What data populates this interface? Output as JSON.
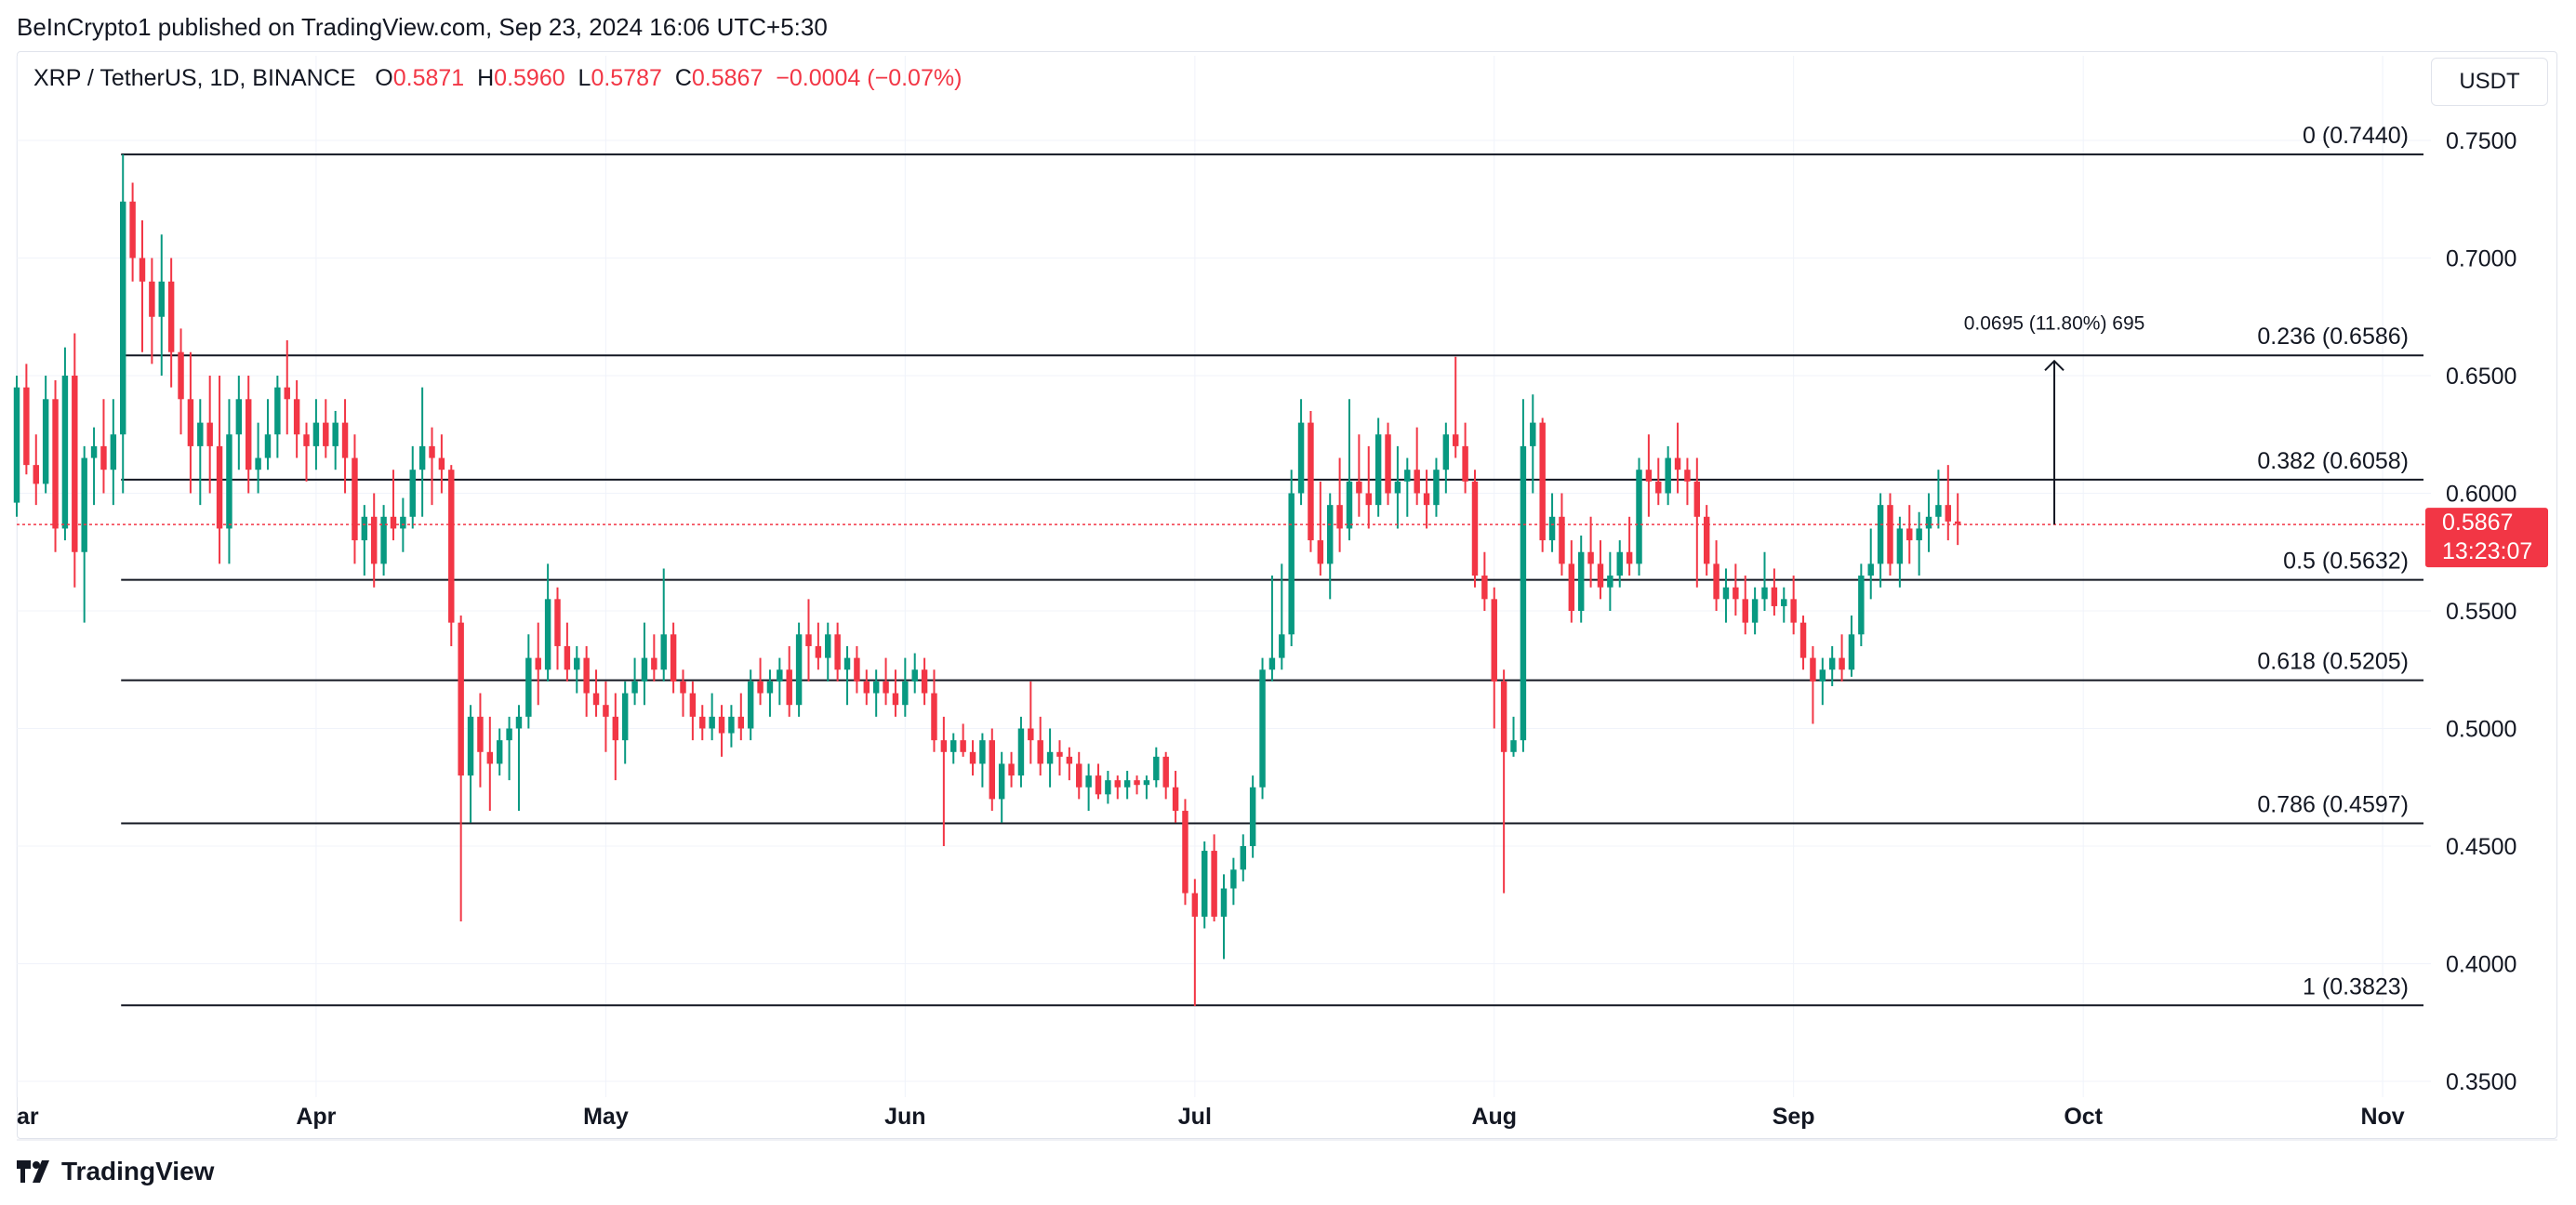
{
  "header": {
    "published_by": "BeInCrypto1 published on TradingView.com, Sep 23, 2024 16:06 UTC+5:30"
  },
  "legend": {
    "symbol": "XRP / TetherUS, 1D, BINANCE",
    "o_label": "O",
    "o_value": "0.5871",
    "h_label": "H",
    "h_value": "0.5960",
    "l_label": "L",
    "l_value": "0.5787",
    "c_label": "C",
    "c_value": "0.5867",
    "change": "−0.0004 (−0.07%)"
  },
  "currency_button": "USDT",
  "footer": {
    "brand": "TradingView"
  },
  "price_tag": {
    "price": "0.5867",
    "countdown": "13:23:07"
  },
  "measure_label": "0.0695 (11.80%) 695",
  "colors": {
    "up": "#089981",
    "down": "#f23645",
    "axis_text": "#131722",
    "grid": "#f0f3fa"
  },
  "icons": {
    "brand": "tradingview-logo-icon"
  },
  "chart_data": {
    "type": "candlestick",
    "symbol": "XRP / TetherUS",
    "interval": "1D",
    "exchange": "BINANCE",
    "ylim": [
      0.33,
      0.78
    ],
    "y_ticks": [
      {
        "value": 0.75,
        "label": "0.7500"
      },
      {
        "value": 0.7,
        "label": "0.7000"
      },
      {
        "value": 0.65,
        "label": "0.6500"
      },
      {
        "value": 0.6,
        "label": "0.6000"
      },
      {
        "value": 0.55,
        "label": "0.5500"
      },
      {
        "value": 0.5,
        "label": "0.5000"
      },
      {
        "value": 0.45,
        "label": "0.4500"
      },
      {
        "value": 0.4,
        "label": "0.4000"
      },
      {
        "value": 0.35,
        "label": "0.3500"
      }
    ],
    "x_range": [
      "2024-03-01",
      "2024-11-06"
    ],
    "x_ticks": [
      {
        "date": "2024-03-01",
        "label": "ar"
      },
      {
        "date": "2024-04-01",
        "label": "Apr"
      },
      {
        "date": "2024-05-01",
        "label": "May"
      },
      {
        "date": "2024-06-01",
        "label": "Jun"
      },
      {
        "date": "2024-07-01",
        "label": "Jul"
      },
      {
        "date": "2024-08-01",
        "label": "Aug"
      },
      {
        "date": "2024-09-01",
        "label": "Sep"
      },
      {
        "date": "2024-10-01",
        "label": "Oct"
      },
      {
        "date": "2024-11-01",
        "label": "Nov"
      }
    ],
    "first_candle_date": "2024-03-01",
    "candles": [
      [
        0.596,
        0.65,
        0.59,
        0.645
      ],
      [
        0.645,
        0.655,
        0.608,
        0.612
      ],
      [
        0.612,
        0.625,
        0.595,
        0.604
      ],
      [
        0.604,
        0.65,
        0.6,
        0.64
      ],
      [
        0.64,
        0.648,
        0.575,
        0.585
      ],
      [
        0.585,
        0.662,
        0.58,
        0.65
      ],
      [
        0.65,
        0.668,
        0.56,
        0.575
      ],
      [
        0.575,
        0.62,
        0.545,
        0.615
      ],
      [
        0.615,
        0.628,
        0.595,
        0.62
      ],
      [
        0.62,
        0.64,
        0.6,
        0.61
      ],
      [
        0.61,
        0.64,
        0.595,
        0.625
      ],
      [
        0.625,
        0.744,
        0.6,
        0.724
      ],
      [
        0.724,
        0.732,
        0.69,
        0.7
      ],
      [
        0.7,
        0.716,
        0.66,
        0.69
      ],
      [
        0.69,
        0.7,
        0.655,
        0.675
      ],
      [
        0.675,
        0.71,
        0.65,
        0.69
      ],
      [
        0.69,
        0.7,
        0.645,
        0.66
      ],
      [
        0.66,
        0.67,
        0.625,
        0.64
      ],
      [
        0.64,
        0.66,
        0.6,
        0.62
      ],
      [
        0.62,
        0.64,
        0.595,
        0.63
      ],
      [
        0.63,
        0.65,
        0.6,
        0.62
      ],
      [
        0.62,
        0.65,
        0.57,
        0.585
      ],
      [
        0.585,
        0.64,
        0.57,
        0.625
      ],
      [
        0.625,
        0.65,
        0.61,
        0.64
      ],
      [
        0.64,
        0.65,
        0.6,
        0.61
      ],
      [
        0.61,
        0.63,
        0.6,
        0.615
      ],
      [
        0.615,
        0.64,
        0.61,
        0.625
      ],
      [
        0.625,
        0.65,
        0.615,
        0.645
      ],
      [
        0.645,
        0.665,
        0.625,
        0.64
      ],
      [
        0.64,
        0.648,
        0.615,
        0.625
      ],
      [
        0.625,
        0.63,
        0.605,
        0.62
      ],
      [
        0.62,
        0.64,
        0.61,
        0.63
      ],
      [
        0.63,
        0.64,
        0.615,
        0.62
      ],
      [
        0.62,
        0.635,
        0.61,
        0.63
      ],
      [
        0.63,
        0.64,
        0.6,
        0.615
      ],
      [
        0.615,
        0.625,
        0.57,
        0.58
      ],
      [
        0.58,
        0.595,
        0.565,
        0.59
      ],
      [
        0.59,
        0.6,
        0.56,
        0.57
      ],
      [
        0.57,
        0.595,
        0.565,
        0.59
      ],
      [
        0.59,
        0.61,
        0.58,
        0.585
      ],
      [
        0.585,
        0.598,
        0.575,
        0.59
      ],
      [
        0.59,
        0.62,
        0.585,
        0.61
      ],
      [
        0.61,
        0.645,
        0.59,
        0.62
      ],
      [
        0.62,
        0.628,
        0.595,
        0.615
      ],
      [
        0.615,
        0.625,
        0.6,
        0.61
      ],
      [
        0.61,
        0.612,
        0.535,
        0.545
      ],
      [
        0.545,
        0.548,
        0.418,
        0.48
      ],
      [
        0.48,
        0.51,
        0.46,
        0.505
      ],
      [
        0.505,
        0.515,
        0.475,
        0.49
      ],
      [
        0.49,
        0.505,
        0.465,
        0.485
      ],
      [
        0.485,
        0.5,
        0.48,
        0.495
      ],
      [
        0.495,
        0.505,
        0.478,
        0.5
      ],
      [
        0.5,
        0.51,
        0.465,
        0.505
      ],
      [
        0.505,
        0.54,
        0.5,
        0.53
      ],
      [
        0.53,
        0.545,
        0.51,
        0.525
      ],
      [
        0.525,
        0.57,
        0.52,
        0.555
      ],
      [
        0.555,
        0.56,
        0.525,
        0.535
      ],
      [
        0.535,
        0.545,
        0.52,
        0.525
      ],
      [
        0.525,
        0.535,
        0.515,
        0.53
      ],
      [
        0.53,
        0.535,
        0.505,
        0.515
      ],
      [
        0.515,
        0.525,
        0.505,
        0.51
      ],
      [
        0.51,
        0.52,
        0.49,
        0.505
      ],
      [
        0.505,
        0.515,
        0.478,
        0.495
      ],
      [
        0.495,
        0.52,
        0.485,
        0.515
      ],
      [
        0.515,
        0.53,
        0.51,
        0.52
      ],
      [
        0.52,
        0.545,
        0.51,
        0.53
      ],
      [
        0.53,
        0.54,
        0.52,
        0.525
      ],
      [
        0.525,
        0.568,
        0.52,
        0.54
      ],
      [
        0.54,
        0.545,
        0.515,
        0.52
      ],
      [
        0.52,
        0.525,
        0.505,
        0.515
      ],
      [
        0.515,
        0.52,
        0.495,
        0.505
      ],
      [
        0.505,
        0.51,
        0.495,
        0.5
      ],
      [
        0.5,
        0.515,
        0.495,
        0.505
      ],
      [
        0.505,
        0.51,
        0.488,
        0.498
      ],
      [
        0.498,
        0.51,
        0.492,
        0.505
      ],
      [
        0.505,
        0.515,
        0.495,
        0.5
      ],
      [
        0.5,
        0.525,
        0.495,
        0.52
      ],
      [
        0.52,
        0.53,
        0.51,
        0.515
      ],
      [
        0.515,
        0.525,
        0.505,
        0.52
      ],
      [
        0.52,
        0.53,
        0.51,
        0.525
      ],
      [
        0.525,
        0.535,
        0.505,
        0.51
      ],
      [
        0.51,
        0.545,
        0.505,
        0.54
      ],
      [
        0.54,
        0.555,
        0.52,
        0.535
      ],
      [
        0.535,
        0.545,
        0.525,
        0.53
      ],
      [
        0.53,
        0.545,
        0.52,
        0.54
      ],
      [
        0.54,
        0.545,
        0.52,
        0.525
      ],
      [
        0.525,
        0.535,
        0.51,
        0.53
      ],
      [
        0.53,
        0.535,
        0.515,
        0.52
      ],
      [
        0.52,
        0.525,
        0.51,
        0.515
      ],
      [
        0.515,
        0.525,
        0.505,
        0.52
      ],
      [
        0.52,
        0.53,
        0.51,
        0.515
      ],
      [
        0.515,
        0.525,
        0.505,
        0.51
      ],
      [
        0.51,
        0.53,
        0.505,
        0.52
      ],
      [
        0.52,
        0.532,
        0.515,
        0.525
      ],
      [
        0.525,
        0.53,
        0.51,
        0.515
      ],
      [
        0.515,
        0.525,
        0.49,
        0.495
      ],
      [
        0.495,
        0.505,
        0.45,
        0.49
      ],
      [
        0.49,
        0.498,
        0.485,
        0.495
      ],
      [
        0.495,
        0.502,
        0.488,
        0.49
      ],
      [
        0.49,
        0.495,
        0.48,
        0.485
      ],
      [
        0.485,
        0.498,
        0.475,
        0.495
      ],
      [
        0.495,
        0.5,
        0.465,
        0.47
      ],
      [
        0.47,
        0.49,
        0.46,
        0.485
      ],
      [
        0.485,
        0.49,
        0.475,
        0.48
      ],
      [
        0.48,
        0.505,
        0.475,
        0.5
      ],
      [
        0.5,
        0.52,
        0.485,
        0.495
      ],
      [
        0.495,
        0.505,
        0.48,
        0.485
      ],
      [
        0.485,
        0.5,
        0.475,
        0.49
      ],
      [
        0.49,
        0.495,
        0.48,
        0.488
      ],
      [
        0.488,
        0.492,
        0.478,
        0.485
      ],
      [
        0.485,
        0.49,
        0.47,
        0.475
      ],
      [
        0.475,
        0.485,
        0.465,
        0.48
      ],
      [
        0.48,
        0.485,
        0.47,
        0.472
      ],
      [
        0.472,
        0.482,
        0.468,
        0.478
      ],
      [
        0.478,
        0.48,
        0.47,
        0.475
      ],
      [
        0.475,
        0.482,
        0.47,
        0.478
      ],
      [
        0.478,
        0.48,
        0.472,
        0.476
      ],
      [
        0.476,
        0.48,
        0.47,
        0.478
      ],
      [
        0.478,
        0.492,
        0.475,
        0.488
      ],
      [
        0.488,
        0.49,
        0.47,
        0.475
      ],
      [
        0.475,
        0.482,
        0.46,
        0.465
      ],
      [
        0.465,
        0.47,
        0.425,
        0.43
      ],
      [
        0.43,
        0.436,
        0.382,
        0.42
      ],
      [
        0.42,
        0.452,
        0.415,
        0.448
      ],
      [
        0.448,
        0.455,
        0.418,
        0.42
      ],
      [
        0.42,
        0.438,
        0.402,
        0.432
      ],
      [
        0.432,
        0.445,
        0.425,
        0.44
      ],
      [
        0.44,
        0.455,
        0.435,
        0.45
      ],
      [
        0.45,
        0.48,
        0.445,
        0.475
      ],
      [
        0.475,
        0.53,
        0.47,
        0.525
      ],
      [
        0.525,
        0.565,
        0.52,
        0.53
      ],
      [
        0.53,
        0.57,
        0.525,
        0.54
      ],
      [
        0.54,
        0.61,
        0.535,
        0.6
      ],
      [
        0.6,
        0.64,
        0.595,
        0.63
      ],
      [
        0.63,
        0.635,
        0.575,
        0.58
      ],
      [
        0.58,
        0.605,
        0.565,
        0.57
      ],
      [
        0.57,
        0.6,
        0.555,
        0.595
      ],
      [
        0.595,
        0.615,
        0.575,
        0.585
      ],
      [
        0.585,
        0.64,
        0.58,
        0.605
      ],
      [
        0.605,
        0.625,
        0.59,
        0.6
      ],
      [
        0.6,
        0.62,
        0.585,
        0.595
      ],
      [
        0.595,
        0.632,
        0.59,
        0.625
      ],
      [
        0.625,
        0.63,
        0.595,
        0.6
      ],
      [
        0.6,
        0.62,
        0.585,
        0.605
      ],
      [
        0.605,
        0.615,
        0.59,
        0.61
      ],
      [
        0.61,
        0.628,
        0.595,
        0.6
      ],
      [
        0.6,
        0.61,
        0.585,
        0.595
      ],
      [
        0.595,
        0.615,
        0.59,
        0.61
      ],
      [
        0.61,
        0.63,
        0.6,
        0.625
      ],
      [
        0.625,
        0.658,
        0.615,
        0.62
      ],
      [
        0.62,
        0.63,
        0.6,
        0.605
      ],
      [
        0.605,
        0.61,
        0.56,
        0.565
      ],
      [
        0.565,
        0.575,
        0.55,
        0.555
      ],
      [
        0.555,
        0.56,
        0.5,
        0.52
      ],
      [
        0.52,
        0.525,
        0.43,
        0.49
      ],
      [
        0.49,
        0.505,
        0.488,
        0.495
      ],
      [
        0.495,
        0.64,
        0.49,
        0.62
      ],
      [
        0.62,
        0.642,
        0.6,
        0.63
      ],
      [
        0.63,
        0.632,
        0.575,
        0.58
      ],
      [
        0.58,
        0.6,
        0.575,
        0.59
      ],
      [
        0.59,
        0.6,
        0.565,
        0.57
      ],
      [
        0.57,
        0.58,
        0.545,
        0.55
      ],
      [
        0.55,
        0.582,
        0.545,
        0.575
      ],
      [
        0.575,
        0.59,
        0.56,
        0.57
      ],
      [
        0.57,
        0.58,
        0.555,
        0.56
      ],
      [
        0.56,
        0.575,
        0.55,
        0.565
      ],
      [
        0.565,
        0.58,
        0.56,
        0.575
      ],
      [
        0.575,
        0.59,
        0.565,
        0.57
      ],
      [
        0.57,
        0.615,
        0.565,
        0.61
      ],
      [
        0.61,
        0.625,
        0.59,
        0.605
      ],
      [
        0.605,
        0.615,
        0.595,
        0.6
      ],
      [
        0.6,
        0.62,
        0.595,
        0.615
      ],
      [
        0.615,
        0.63,
        0.6,
        0.61
      ],
      [
        0.61,
        0.615,
        0.595,
        0.605
      ],
      [
        0.605,
        0.615,
        0.56,
        0.59
      ],
      [
        0.59,
        0.595,
        0.565,
        0.57
      ],
      [
        0.57,
        0.58,
        0.55,
        0.555
      ],
      [
        0.555,
        0.568,
        0.545,
        0.56
      ],
      [
        0.56,
        0.57,
        0.548,
        0.555
      ],
      [
        0.555,
        0.565,
        0.54,
        0.545
      ],
      [
        0.545,
        0.56,
        0.54,
        0.555
      ],
      [
        0.555,
        0.575,
        0.55,
        0.56
      ],
      [
        0.56,
        0.568,
        0.548,
        0.552
      ],
      [
        0.552,
        0.56,
        0.545,
        0.555
      ],
      [
        0.555,
        0.565,
        0.54,
        0.545
      ],
      [
        0.545,
        0.548,
        0.525,
        0.53
      ],
      [
        0.53,
        0.535,
        0.502,
        0.52
      ],
      [
        0.52,
        0.53,
        0.51,
        0.525
      ],
      [
        0.525,
        0.535,
        0.518,
        0.53
      ],
      [
        0.53,
        0.54,
        0.52,
        0.525
      ],
      [
        0.525,
        0.548,
        0.522,
        0.54
      ],
      [
        0.54,
        0.57,
        0.535,
        0.565
      ],
      [
        0.565,
        0.585,
        0.555,
        0.57
      ],
      [
        0.57,
        0.6,
        0.56,
        0.595
      ],
      [
        0.595,
        0.6,
        0.565,
        0.57
      ],
      [
        0.57,
        0.59,
        0.56,
        0.585
      ],
      [
        0.585,
        0.595,
        0.57,
        0.58
      ],
      [
        0.58,
        0.592,
        0.565,
        0.585
      ],
      [
        0.585,
        0.6,
        0.575,
        0.59
      ],
      [
        0.59,
        0.61,
        0.585,
        0.595
      ],
      [
        0.595,
        0.612,
        0.58,
        0.588
      ],
      [
        0.588,
        0.6,
        0.578,
        0.587
      ]
    ],
    "fibonacci": [
      {
        "label": "0 (0.7440)",
        "value": 0.744
      },
      {
        "label": "0.236 (0.6586)",
        "value": 0.6586
      },
      {
        "label": "0.382 (0.6058)",
        "value": 0.6058
      },
      {
        "label": "0.5 (0.5632)",
        "value": 0.5632
      },
      {
        "label": "0.618 (0.5205)",
        "value": 0.5205
      },
      {
        "label": "0.786 (0.4597)",
        "value": 0.4597
      },
      {
        "label": "1 (0.3823)",
        "value": 0.3823
      }
    ],
    "fib_start_date": "2024-03-12",
    "last_price": 0.5867,
    "measure": {
      "date": "2024-09-28",
      "from": 0.5867,
      "to": 0.6562
    }
  }
}
